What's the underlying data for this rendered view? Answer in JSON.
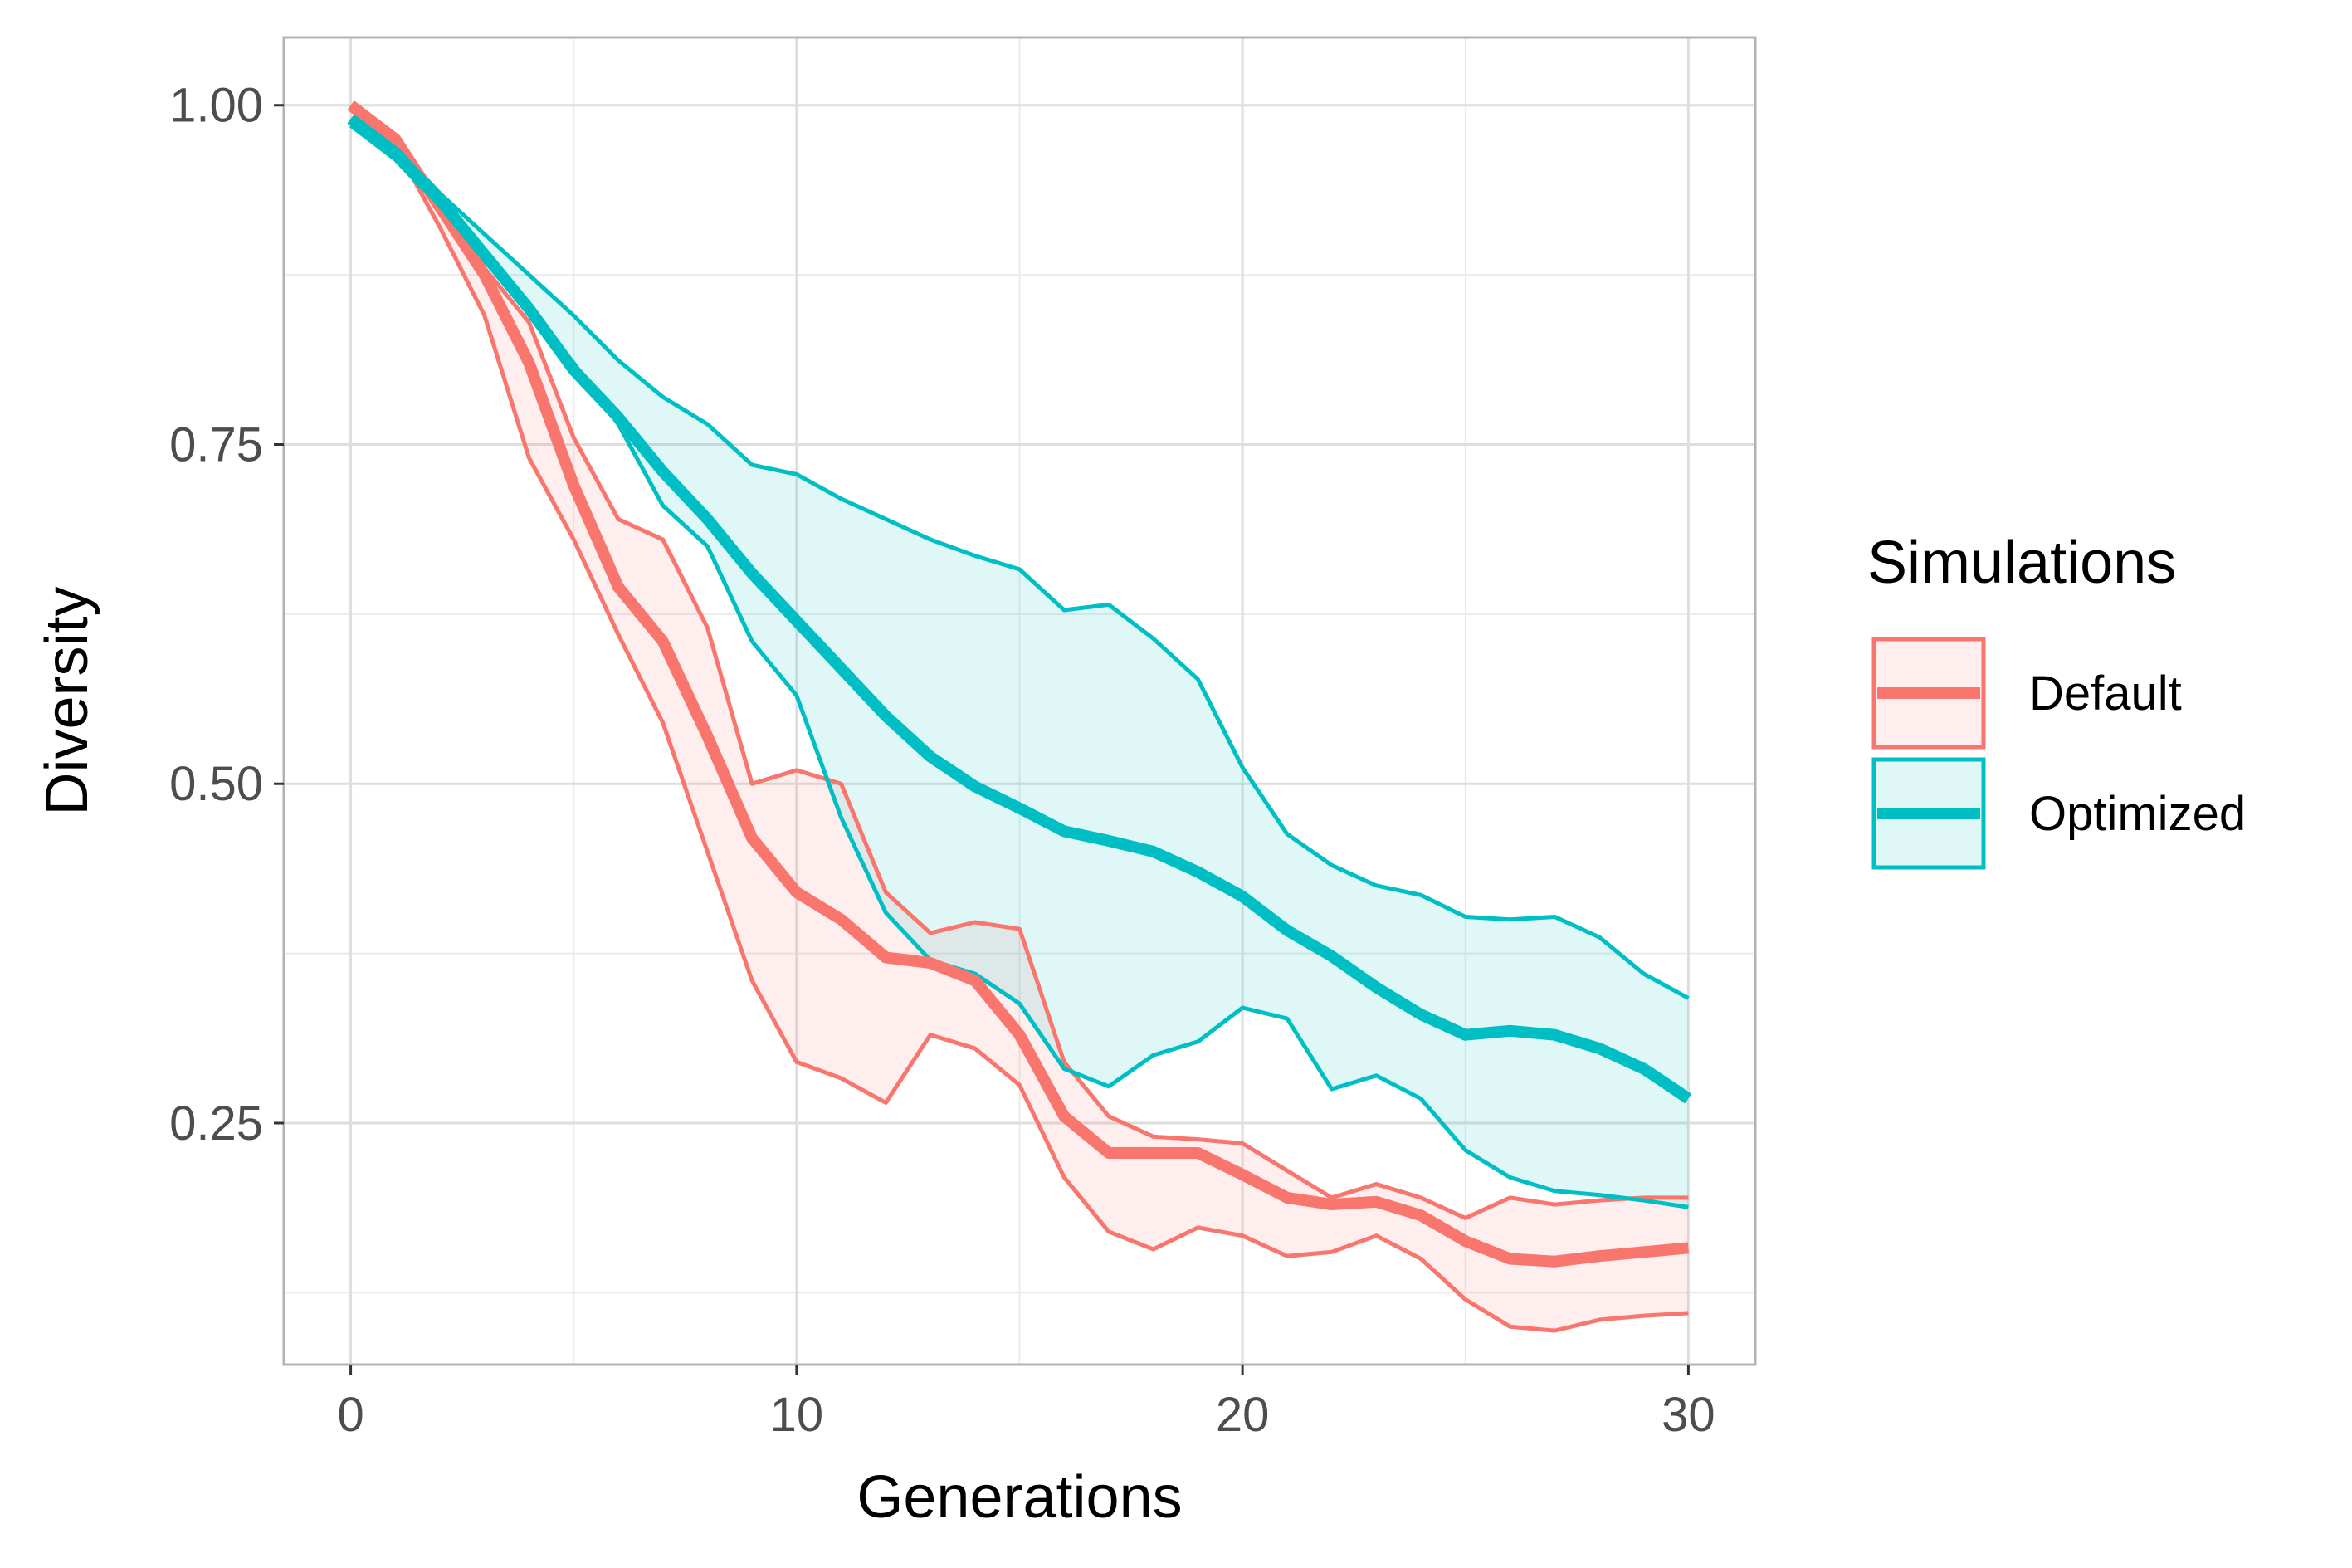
{
  "chart_data": {
    "type": "line",
    "xlabel": "Generations",
    "ylabel": "Diversity",
    "xlim": [
      -1.5,
      31.5
    ],
    "ylim": [
      0.072,
      1.05
    ],
    "x_ticks": [
      0,
      10,
      20,
      30
    ],
    "x_tick_labels": [
      "0",
      "10",
      "20",
      "30"
    ],
    "y_ticks": [
      0.25,
      0.5,
      0.75,
      1.0
    ],
    "y_tick_labels": [
      "0.25",
      "0.50",
      "0.75",
      "1.00"
    ],
    "x_minor_ticks": [
      5,
      15,
      25
    ],
    "y_minor_ticks": [
      0.125,
      0.375,
      0.625,
      0.875
    ],
    "grid": true,
    "legend": {
      "title": "Simulations",
      "position": "right"
    },
    "x": [
      0,
      1,
      2,
      3,
      4,
      5,
      6,
      7,
      8,
      9,
      10,
      11,
      12,
      13,
      14,
      15,
      16,
      17,
      18,
      19,
      20,
      21,
      22,
      23,
      24,
      25,
      26,
      27,
      28,
      29,
      30
    ],
    "series": [
      {
        "name": "Default",
        "color": "#F8766D",
        "mean": [
          1.0,
          0.975,
          0.925,
          0.875,
          0.81,
          0.72,
          0.645,
          0.605,
          0.535,
          0.46,
          0.42,
          0.4,
          0.372,
          0.368,
          0.355,
          0.315,
          0.255,
          0.228,
          0.228,
          0.228,
          0.212,
          0.195,
          0.19,
          0.192,
          0.182,
          0.163,
          0.15,
          0.148,
          0.152,
          0.155,
          0.158
        ],
        "upper": [
          1.0,
          0.978,
          0.93,
          0.88,
          0.84,
          0.755,
          0.695,
          0.68,
          0.615,
          0.5,
          0.51,
          0.5,
          0.42,
          0.39,
          0.398,
          0.393,
          0.295,
          0.255,
          0.24,
          0.238,
          0.235,
          0.215,
          0.195,
          0.205,
          0.195,
          0.18,
          0.195,
          0.19,
          0.193,
          0.195,
          0.195
        ],
        "lower": [
          0.998,
          0.97,
          0.91,
          0.845,
          0.74,
          0.68,
          0.61,
          0.545,
          0.45,
          0.355,
          0.295,
          0.283,
          0.265,
          0.315,
          0.305,
          0.278,
          0.21,
          0.17,
          0.157,
          0.173,
          0.167,
          0.152,
          0.155,
          0.167,
          0.15,
          0.12,
          0.1,
          0.097,
          0.105,
          0.108,
          0.11
        ]
      },
      {
        "name": "Optimized",
        "color": "#00BFC4",
        "mean": [
          0.99,
          0.965,
          0.93,
          0.89,
          0.85,
          0.805,
          0.77,
          0.73,
          0.695,
          0.655,
          0.62,
          0.585,
          0.55,
          0.52,
          0.498,
          0.482,
          0.465,
          0.458,
          0.45,
          0.435,
          0.417,
          0.392,
          0.373,
          0.35,
          0.33,
          0.315,
          0.318,
          0.315,
          0.305,
          0.29,
          0.268
        ],
        "upper": [
          0.99,
          0.97,
          0.935,
          0.905,
          0.875,
          0.845,
          0.812,
          0.785,
          0.765,
          0.735,
          0.728,
          0.71,
          0.695,
          0.68,
          0.668,
          0.658,
          0.628,
          0.632,
          0.607,
          0.577,
          0.512,
          0.463,
          0.44,
          0.425,
          0.418,
          0.402,
          0.4,
          0.402,
          0.387,
          0.36,
          0.342
        ],
        "lower": [
          0.985,
          0.96,
          0.925,
          0.885,
          0.85,
          0.81,
          0.765,
          0.705,
          0.675,
          0.605,
          0.565,
          0.475,
          0.405,
          0.37,
          0.36,
          0.338,
          0.29,
          0.277,
          0.3,
          0.31,
          0.335,
          0.327,
          0.275,
          0.285,
          0.268,
          0.23,
          0.21,
          0.2,
          0.197,
          0.193,
          0.188
        ]
      }
    ]
  }
}
